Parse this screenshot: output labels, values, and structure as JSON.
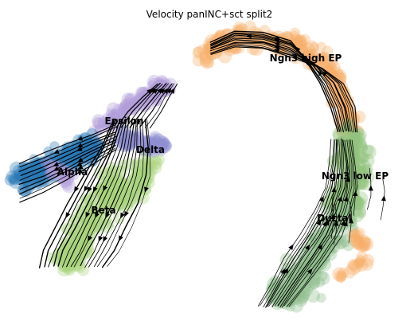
{
  "chart_data": {
    "type": "scatter",
    "title": "Velocity panINC+sct split2",
    "xlabel": "",
    "ylabel": "",
    "axes_visible": false,
    "grid": false,
    "legend": "on data",
    "embedding": "streamlines over point cloud",
    "clusters": [
      {
        "name": "Ngn3 high EP",
        "color": "#f7b06a",
        "centroid": [
          0.72,
          0.16
        ]
      },
      {
        "name": "Ngn3 low EP",
        "color": "#93c47f",
        "centroid": [
          0.86,
          0.55
        ]
      },
      {
        "name": "Ductal",
        "color": "#8fbd8c",
        "centroid": [
          0.82,
          0.78
        ]
      },
      {
        "name": "Epsilon",
        "color": "#b39ddb",
        "centroid": [
          0.33,
          0.33
        ]
      },
      {
        "name": "Delta",
        "color": "#8e8fd0",
        "centroid": [
          0.39,
          0.43
        ]
      },
      {
        "name": "Alpha",
        "color": "#2878b5",
        "centroid": [
          0.16,
          0.51
        ]
      },
      {
        "name": "Beta",
        "color": "#a8d47e",
        "centroid": [
          0.27,
          0.71
        ]
      }
    ]
  }
}
